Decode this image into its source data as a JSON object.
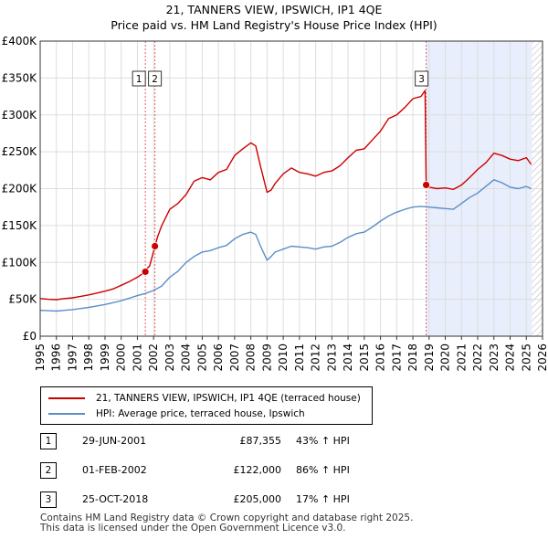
{
  "chart_data": {
    "type": "line",
    "title": "21, TANNERS VIEW, IPSWICH, IP1 4QE",
    "subtitle": "Price paid vs. HM Land Registry's House Price Index (HPI)",
    "xlabel": "",
    "ylabel": "",
    "xlim": [
      1995,
      2026
    ],
    "ylim": [
      0,
      400000
    ],
    "y_ticks": [
      0,
      50000,
      100000,
      150000,
      200000,
      250000,
      300000,
      350000,
      400000
    ],
    "y_tick_labels": [
      "£0",
      "£50K",
      "£100K",
      "£150K",
      "£200K",
      "£250K",
      "£300K",
      "£350K",
      "£400K"
    ],
    "x_ticks": [
      1995,
      1996,
      1997,
      1998,
      1999,
      2000,
      2001,
      2002,
      2003,
      2004,
      2005,
      2006,
      2007,
      2008,
      2009,
      2010,
      2011,
      2012,
      2013,
      2014,
      2015,
      2016,
      2017,
      2018,
      2019,
      2020,
      2021,
      2022,
      2023,
      2024,
      2025,
      2026
    ],
    "x_tick_labels": [
      "1995",
      "1996",
      "1997",
      "1998",
      "1999",
      "2000",
      "2001",
      "2002",
      "2003",
      "2004",
      "2005",
      "2006",
      "2007",
      "2008",
      "2009",
      "2010",
      "2011",
      "2012",
      "2013",
      "2014",
      "2015",
      "2016",
      "2017",
      "2018",
      "2019",
      "2020",
      "2021",
      "2022",
      "2023",
      "2024",
      "2025",
      "2026"
    ],
    "grid": true,
    "shaded_region": {
      "from": 2018.82,
      "to": 2025.35
    },
    "hatched_from": 2025.35,
    "series": [
      {
        "name": "21, TANNERS VIEW, IPSWICH, IP1 4QE (terraced house)",
        "color": "#cc0000",
        "x": [
          1995.0,
          1995.5,
          1996.0,
          1996.5,
          1997.0,
          1997.5,
          1998.0,
          1998.5,
          1999.0,
          1999.5,
          2000.0,
          2000.5,
          2001.0,
          2001.49,
          2001.5,
          2001.75,
          2002.08,
          2002.25,
          2002.5,
          2003.0,
          2003.5,
          2004.0,
          2004.5,
          2005.0,
          2005.5,
          2006.0,
          2006.5,
          2007.0,
          2007.5,
          2008.0,
          2008.3,
          2008.6,
          2009.0,
          2009.25,
          2009.5,
          2010.0,
          2010.5,
          2011.0,
          2011.5,
          2012.0,
          2012.5,
          2013.0,
          2013.5,
          2014.0,
          2014.5,
          2015.0,
          2015.5,
          2016.0,
          2016.5,
          2017.0,
          2017.5,
          2018.0,
          2018.5,
          2018.75,
          2018.82,
          2019.0,
          2019.5,
          2020.0,
          2020.5,
          2021.0,
          2021.5,
          2022.0,
          2022.5,
          2023.0,
          2023.5,
          2024.0,
          2024.5,
          2025.0,
          2025.3
        ],
        "values": [
          51000,
          50000,
          49500,
          51000,
          52000,
          54000,
          56000,
          58500,
          61000,
          64000,
          69000,
          74000,
          80000,
          87355,
          90000,
          95000,
          122000,
          135000,
          150000,
          172000,
          180000,
          192000,
          210000,
          215000,
          212000,
          222000,
          226000,
          245000,
          254000,
          262000,
          258000,
          230000,
          195000,
          198000,
          207000,
          220000,
          228000,
          222000,
          220000,
          217000,
          222000,
          224000,
          231000,
          242000,
          252000,
          254000,
          266000,
          278000,
          295000,
          300000,
          310000,
          322000,
          325000,
          333000,
          205000,
          202000,
          200000,
          201000,
          199000,
          205000,
          215000,
          226000,
          235000,
          248000,
          245000,
          240000,
          238000,
          242000,
          233000
        ]
      },
      {
        "name": "HPI: Average price, terraced house, Ipswich",
        "color": "#5b8ec8",
        "x": [
          1995.0,
          1995.5,
          1996.0,
          1996.5,
          1997.0,
          1997.5,
          1998.0,
          1998.5,
          1999.0,
          1999.5,
          2000.0,
          2000.5,
          2001.0,
          2001.5,
          2002.0,
          2002.5,
          2003.0,
          2003.5,
          2004.0,
          2004.5,
          2005.0,
          2005.5,
          2006.0,
          2006.5,
          2007.0,
          2007.5,
          2008.0,
          2008.3,
          2008.6,
          2009.0,
          2009.25,
          2009.5,
          2010.0,
          2010.5,
          2011.0,
          2011.5,
          2012.0,
          2012.5,
          2013.0,
          2013.5,
          2014.0,
          2014.5,
          2015.0,
          2015.5,
          2016.0,
          2016.5,
          2017.0,
          2017.5,
          2018.0,
          2018.5,
          2019.0,
          2019.5,
          2020.0,
          2020.5,
          2021.0,
          2021.5,
          2022.0,
          2022.5,
          2023.0,
          2023.5,
          2024.0,
          2024.5,
          2025.0,
          2025.3
        ],
        "values": [
          35000,
          34500,
          34000,
          35000,
          36000,
          37500,
          39000,
          41000,
          43000,
          45500,
          48000,
          51500,
          55000,
          58000,
          62000,
          68000,
          80000,
          88000,
          100000,
          108000,
          114000,
          116000,
          120000,
          123000,
          132000,
          138000,
          141000,
          138000,
          122000,
          103000,
          108000,
          114000,
          118000,
          122000,
          121000,
          120000,
          118000,
          121000,
          122000,
          127000,
          134000,
          139000,
          141000,
          148000,
          156000,
          163000,
          168000,
          172000,
          175000,
          176000,
          175000,
          174000,
          173000,
          172000,
          180000,
          188000,
          194000,
          203000,
          212000,
          208000,
          202000,
          200000,
          203000,
          200000
        ]
      }
    ],
    "markers": [
      {
        "label": "1",
        "x": 2001.49,
        "y": 87355
      },
      {
        "label": "2",
        "x": 2002.08,
        "y": 122000
      },
      {
        "label": "3",
        "x": 2018.82,
        "y": 205000
      }
    ],
    "legend_position": "below"
  },
  "legend": {
    "property_label": "21, TANNERS VIEW, IPSWICH, IP1 4QE (terraced house)",
    "hpi_label": "HPI: Average price, terraced house, Ipswich"
  },
  "transactions": [
    {
      "num": "1",
      "date": "29-JUN-2001",
      "price": "£87,355",
      "hpi": "43% ↑ HPI"
    },
    {
      "num": "2",
      "date": "01-FEB-2002",
      "price": "£122,000",
      "hpi": "86% ↑ HPI"
    },
    {
      "num": "3",
      "date": "25-OCT-2018",
      "price": "£205,000",
      "hpi": "17% ↑ HPI"
    }
  ],
  "footer": {
    "line1": "Contains HM Land Registry data © Crown copyright and database right 2025.",
    "line2": "This data is licensed under the Open Government Licence v3.0."
  }
}
